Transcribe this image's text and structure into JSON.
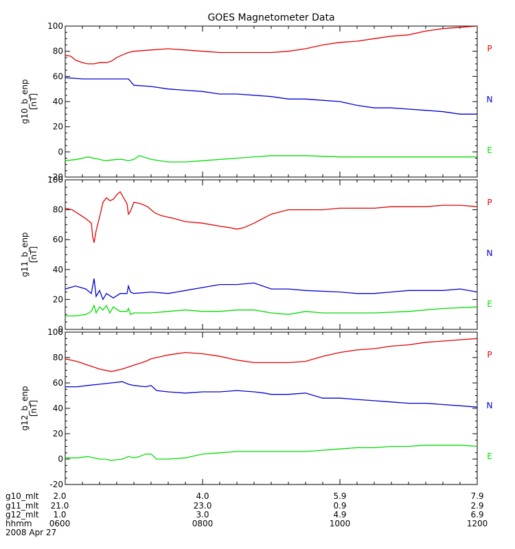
{
  "chart_data": {
    "type": "line",
    "title": "GOES Magnetometer Data",
    "panels": [
      {
        "ylabel": "g10_b_enp",
        "yunit": "[nT]",
        "ylim": [
          -20,
          100
        ],
        "yticks": [
          -20,
          0,
          20,
          40,
          60,
          80,
          100
        ],
        "series": [
          {
            "name": "P",
            "color": "#e00000",
            "x": [
              0,
              0.08,
              0.15,
              0.25,
              0.33,
              0.42,
              0.5,
              0.6,
              0.67,
              0.75,
              0.83,
              0.92,
              1.0,
              1.25,
              1.5,
              1.75,
              2.0,
              2.25,
              2.5,
              2.75,
              3.0,
              3.25,
              3.5,
              3.75,
              4.0,
              4.25,
              4.5,
              4.75,
              5.0,
              5.25,
              5.5,
              5.75,
              6.0
            ],
            "values": [
              77,
              76,
              73,
              71,
              70,
              70,
              71,
              71,
              72,
              75,
              77,
              79,
              80,
              81,
              82,
              81,
              80,
              79,
              79,
              79,
              79,
              80,
              82,
              85,
              87,
              88,
              90,
              92,
              93,
              96,
              98,
              99,
              100
            ]
          },
          {
            "name": "N",
            "color": "#0000d0",
            "x": [
              0,
              0.25,
              0.5,
              0.75,
              0.92,
              1.0,
              1.25,
              1.5,
              1.75,
              2.0,
              2.25,
              2.5,
              2.75,
              3.0,
              3.25,
              3.5,
              3.75,
              4.0,
              4.25,
              4.5,
              4.75,
              5.0,
              5.25,
              5.5,
              5.75,
              6.0
            ],
            "values": [
              59,
              58,
              58,
              58,
              58,
              53,
              52,
              50,
              49,
              48,
              46,
              46,
              45,
              44,
              42,
              42,
              41,
              40,
              37,
              35,
              35,
              34,
              33,
              32,
              30,
              30
            ]
          },
          {
            "name": "E",
            "color": "#00dd00",
            "x": [
              0,
              0.17,
              0.33,
              0.5,
              0.58,
              0.75,
              0.83,
              0.92,
              1.0,
              1.08,
              1.25,
              1.5,
              1.75,
              2.0,
              2.5,
              3.0,
              3.5,
              4.0,
              4.5,
              5.0,
              5.5,
              6.0
            ],
            "values": [
              -7,
              -6,
              -4,
              -6,
              -7,
              -6,
              -6,
              -7,
              -6,
              -3,
              -6,
              -8,
              -8,
              -7,
              -5,
              -3,
              -3,
              -4,
              -4,
              -4,
              -4,
              -4
            ]
          }
        ]
      },
      {
        "ylabel": "g11_b_enp",
        "yunit": "[nT]",
        "ylim": [
          0,
          100
        ],
        "yticks": [
          0,
          20,
          40,
          60,
          80,
          100
        ],
        "series": [
          {
            "name": "P",
            "color": "#e00000",
            "x": [
              0,
              0.1,
              0.2,
              0.3,
              0.38,
              0.4,
              0.42,
              0.45,
              0.5,
              0.55,
              0.6,
              0.65,
              0.7,
              0.75,
              0.8,
              0.85,
              0.9,
              0.92,
              0.95,
              1.0,
              1.1,
              1.2,
              1.3,
              1.4,
              1.5,
              1.6,
              1.75,
              2.0,
              2.25,
              2.4,
              2.5,
              2.6,
              2.75,
              3.0,
              3.25,
              3.5,
              3.75,
              4.0,
              4.25,
              4.5,
              4.75,
              5.0,
              5.25,
              5.5,
              5.75,
              6.0
            ],
            "values": [
              81,
              80,
              77,
              74,
              71,
              62,
              58,
              66,
              75,
              85,
              88,
              86,
              87,
              90,
              92,
              88,
              84,
              77,
              79,
              85,
              84,
              82,
              78,
              76,
              75,
              74,
              72,
              71,
              69,
              68,
              67,
              68,
              71,
              77,
              80,
              80,
              80,
              81,
              81,
              81,
              82,
              82,
              82,
              83,
              83,
              82
            ]
          },
          {
            "name": "N",
            "color": "#0000d0",
            "x": [
              0,
              0.15,
              0.3,
              0.38,
              0.42,
              0.45,
              0.5,
              0.55,
              0.6,
              0.7,
              0.8,
              0.9,
              0.92,
              0.95,
              1.0,
              1.25,
              1.5,
              1.75,
              2.0,
              2.25,
              2.5,
              2.75,
              3.0,
              3.25,
              3.5,
              4.0,
              4.25,
              4.5,
              4.75,
              5.0,
              5.25,
              5.5,
              5.75,
              6.0
            ],
            "values": [
              27,
              29,
              27,
              24,
              34,
              22,
              26,
              20,
              24,
              21,
              24,
              24,
              29,
              25,
              24,
              25,
              24,
              26,
              28,
              30,
              30,
              31,
              27,
              27,
              26,
              25,
              24,
              24,
              25,
              26,
              26,
              26,
              27,
              25
            ]
          },
          {
            "name": "E",
            "color": "#00dd00",
            "x": [
              0,
              0.15,
              0.3,
              0.38,
              0.42,
              0.45,
              0.5,
              0.55,
              0.6,
              0.65,
              0.7,
              0.8,
              0.9,
              0.92,
              0.95,
              1.0,
              1.25,
              1.5,
              1.75,
              2.0,
              2.25,
              2.5,
              2.75,
              3.0,
              3.25,
              3.5,
              3.75,
              4.0,
              4.5,
              5.0,
              5.5,
              6.0
            ],
            "values": [
              9,
              9,
              10,
              12,
              16,
              11,
              15,
              13,
              16,
              11,
              15,
              12,
              12,
              14,
              10,
              11,
              11,
              12,
              13,
              12,
              12,
              13,
              13,
              11,
              10,
              12,
              11,
              11,
              11,
              12,
              14,
              15
            ]
          }
        ]
      },
      {
        "ylabel": "g12_b_enp",
        "yunit": "[nT]",
        "ylim": [
          -20,
          100
        ],
        "yticks": [
          -20,
          0,
          20,
          40,
          60,
          80,
          100
        ],
        "series": [
          {
            "name": "P",
            "color": "#e00000",
            "x": [
              0,
              0.17,
              0.33,
              0.5,
              0.67,
              0.83,
              1.0,
              1.17,
              1.25,
              1.33,
              1.5,
              1.75,
              2.0,
              2.25,
              2.5,
              2.75,
              3.0,
              3.25,
              3.5,
              3.75,
              4.0,
              4.25,
              4.5,
              4.75,
              5.0,
              5.25,
              5.5,
              5.75,
              6.0
            ],
            "values": [
              79,
              77,
              74,
              71,
              69,
              71,
              74,
              77,
              79,
              80,
              82,
              84,
              83,
              81,
              78,
              76,
              76,
              76,
              77,
              81,
              84,
              86,
              87,
              89,
              90,
              92,
              93,
              94,
              95
            ]
          },
          {
            "name": "N",
            "color": "#0000d0",
            "x": [
              0,
              0.17,
              0.33,
              0.5,
              0.67,
              0.83,
              0.92,
              1.0,
              1.17,
              1.25,
              1.33,
              1.5,
              1.75,
              2.0,
              2.25,
              2.5,
              2.75,
              2.9,
              3.0,
              3.25,
              3.5,
              3.75,
              4.0,
              4.25,
              4.5,
              4.75,
              5.0,
              5.25,
              5.5,
              5.75,
              6.0
            ],
            "values": [
              57,
              57,
              58,
              59,
              60,
              61,
              59,
              58,
              57,
              58,
              54,
              53,
              52,
              53,
              53,
              54,
              53,
              52,
              51,
              51,
              52,
              48,
              48,
              47,
              46,
              45,
              44,
              44,
              43,
              42,
              41
            ]
          },
          {
            "name": "E",
            "color": "#00dd00",
            "x": [
              0,
              0.17,
              0.33,
              0.5,
              0.58,
              0.67,
              0.83,
              0.92,
              1.0,
              1.08,
              1.17,
              1.25,
              1.33,
              1.5,
              1.75,
              2.0,
              2.25,
              2.5,
              2.75,
              3.0,
              3.25,
              3.5,
              3.75,
              4.0,
              4.25,
              4.5,
              4.75,
              5.0,
              5.25,
              5.5,
              5.75,
              6.0
            ],
            "values": [
              1,
              1,
              2,
              0,
              0,
              -1,
              0,
              2,
              1,
              2,
              4,
              4,
              0,
              0,
              1,
              4,
              5,
              6,
              6,
              6,
              6,
              6,
              7,
              8,
              9,
              9,
              10,
              10,
              11,
              11,
              11,
              10
            ]
          }
        ]
      }
    ],
    "x_ticks": [
      {
        "x": 0,
        "mlt10": "2.0",
        "mlt11": "21.0",
        "mlt12": "1.0",
        "hhmm": "0600"
      },
      {
        "x": 2,
        "mlt10": "4.0",
        "mlt11": "23.0",
        "mlt12": "3.0",
        "hhmm": "0800"
      },
      {
        "x": 4,
        "mlt10": "5.9",
        "mlt11": "0.9",
        "mlt12": "4.9",
        "hhmm": "1000"
      },
      {
        "x": 6,
        "mlt10": "7.9",
        "mlt11": "2.9",
        "mlt12": "6.9",
        "hhmm": "1200"
      }
    ],
    "x_range_hours": [
      0,
      6
    ],
    "footer_labels": [
      "g10_mlt",
      "g11_mlt",
      "g12_mlt",
      "hhmm"
    ],
    "date": "2008 Apr 27"
  }
}
